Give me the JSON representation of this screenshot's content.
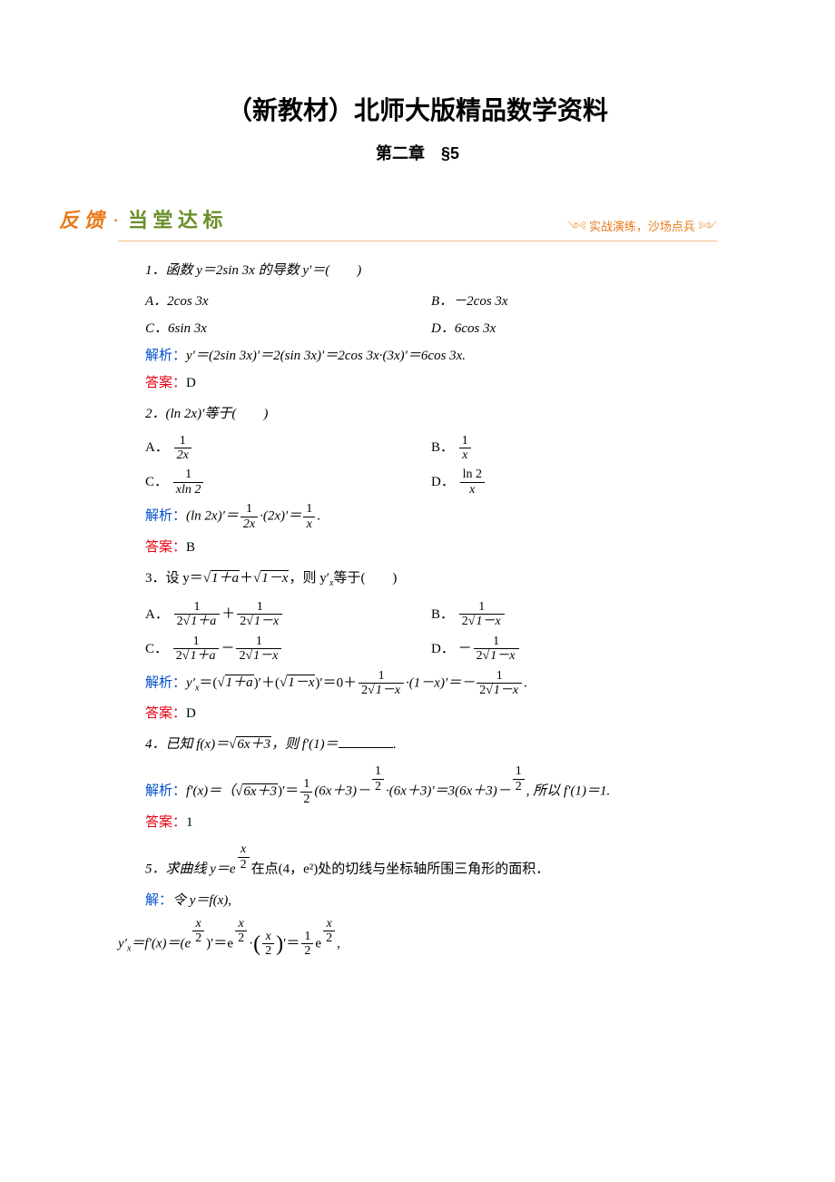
{
  "header": {
    "main_title": "（新教材）北师大版精品数学资料",
    "chapter": "第二章　§5"
  },
  "feedback": {
    "left1": "反 馈",
    "dot": "·",
    "left2": "当 堂 达 标",
    "right": "实战演练，沙场点兵",
    "border_color": "#f5b77f",
    "fk_color": "#e87a1a",
    "dt_color": "#6a8f2a"
  },
  "colors": {
    "jiexi": "#0050c8",
    "daan": "#e60012",
    "text": "#000000",
    "background": "#ffffff"
  },
  "q1": {
    "text": "1．函数 y＝2sin 3x 的导数 y′＝(　　)",
    "optA": "A．2cos 3x",
    "optB": "B．－2cos 3x",
    "optC": "C．6sin 3x",
    "optD": "D．6cos 3x",
    "jiexi_label": "解析：",
    "jiexi": "y′＝(2sin 3x)′＝2(sin 3x)′＝2cos 3x·(3x)′＝6cos 3x.",
    "daan_label": "答案：",
    "daan": "D"
  },
  "q2": {
    "text": "2．(ln 2x)′等于(　　)",
    "optA": "A．",
    "optB": "B．",
    "optC": "C．",
    "optD": "D．",
    "fracA_num": "1",
    "fracA_den": "2x",
    "fracB_num": "1",
    "fracB_den": "x",
    "fracC_num": "1",
    "fracC_den": "xln 2",
    "fracD_num": "ln 2",
    "fracD_den": "x",
    "jiexi_label": "解析：",
    "jiexi_1": "(ln 2x)′＝",
    "jiexi_f1_num": "1",
    "jiexi_f1_den": "2x",
    "jiexi_2": "·(2x)′＝",
    "jiexi_f2_num": "1",
    "jiexi_f2_den": "x",
    "jiexi_3": ".",
    "daan_label": "答案：",
    "daan": "B"
  },
  "q3": {
    "text_1": "3．设 y＝",
    "rad1": "1＋a",
    "text_2": "＋",
    "rad2": "1－x",
    "text_3": "，则 y′",
    "text_4": "等于(　　)",
    "optA": "A．",
    "optB": "B．",
    "optC": "C．",
    "optD": "D．",
    "A_f1_num": "1",
    "A_f1_den_pre": "2",
    "A_f1_rad": "1＋a",
    "A_mid": "＋",
    "A_f2_num": "1",
    "A_f2_den_pre": "2",
    "A_f2_rad": "1－x",
    "B_f_num": "1",
    "B_f_den_pre": "2",
    "B_f_rad": "1－x",
    "C_f1_num": "1",
    "C_f1_den_pre": "2",
    "C_f1_rad": "1＋a",
    "C_mid": "－",
    "C_f2_num": "1",
    "C_f2_den_pre": "2",
    "C_f2_rad": "1－x",
    "D_pre": "－",
    "D_f_num": "1",
    "D_f_den_pre": "2",
    "D_f_rad": "1－x",
    "jiexi_label": "解析：",
    "jx_1": "y′",
    "jx_2": "＝(",
    "jx_rad1": "1＋a",
    "jx_3": ")′＋(",
    "jx_rad2": "1－x",
    "jx_4": ")′＝0＋",
    "jx_f1_num": "1",
    "jx_f1_den_pre": "2",
    "jx_f1_rad": "1－x",
    "jx_5": "·(1－x)′＝－",
    "jx_f2_num": "1",
    "jx_f2_den_pre": "2",
    "jx_f2_rad": "1－x",
    "jx_6": ".",
    "daan_label": "答案：",
    "daan": "D"
  },
  "q4": {
    "text_1": "4．已知 f(x)＝",
    "rad": "6x＋3",
    "text_2": "，则 f′(1)＝",
    "text_3": ".",
    "jiexi_label": "解析：",
    "jx_1": "f′(x)＝（",
    "jx_rad": "6x＋3",
    "jx_2": ")′＝",
    "jx_f1_num": "1",
    "jx_f1_den": "2",
    "jx_3": "(6x＋3)－",
    "jx_ef1_num": "1",
    "jx_ef1_den": "2",
    "jx_4": "·(6x＋3)′＝3(6x＋3)－",
    "jx_ef2_num": "1",
    "jx_ef2_den": "2",
    "jx_5": ", 所以 f′(1)＝1.",
    "daan_label": "答案：",
    "daan": "1"
  },
  "q5": {
    "text_1": "5．求曲线 y＝e",
    "exp_num": "x",
    "exp_den": "2",
    "text_2": "在点(4，e²)处的切线与坐标轴所围三角形的面积．",
    "jie_label": "解：",
    "jie_1": "令 y＝f(x),",
    "l2_1": "y′",
    "l2_2": "＝f′(x)＝(e",
    "l2_e1_num": "x",
    "l2_e1_den": "2",
    "l2_3": ")′＝e",
    "l2_e2_num": "x",
    "l2_e2_den": "2",
    "l2_4": "·",
    "l2_p_num": "x",
    "l2_p_den": "2",
    "l2_5": "′＝",
    "l2_f_num": "1",
    "l2_f_den": "2",
    "l2_6": "e",
    "l2_e3_num": "x",
    "l2_e3_den": "2",
    "l2_7": ","
  }
}
